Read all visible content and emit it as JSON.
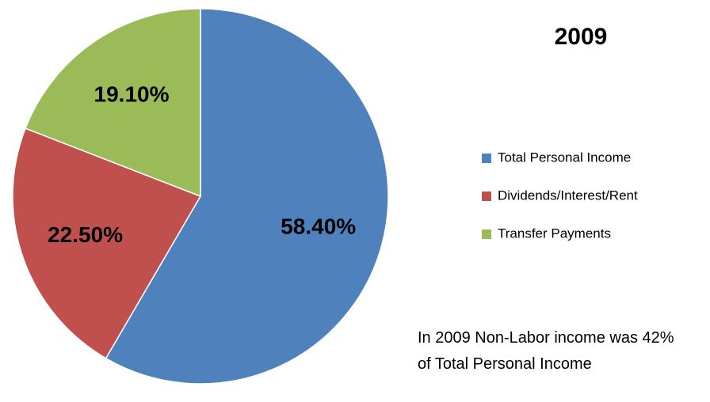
{
  "chart_data": {
    "type": "pie",
    "title": "2009",
    "categories": [
      "Total Personal Income",
      "Dividends/Interest/Rent",
      "Transfer Payments"
    ],
    "values": [
      58.4,
      22.5,
      19.1
    ],
    "value_labels": [
      "58.40%",
      "22.50%",
      "19.10%"
    ],
    "colors": [
      "#4f81bd",
      "#c0504d",
      "#9bbb59"
    ],
    "legend": "right",
    "annotation": "In 2009 Non-Labor income was 42% of Total Personal Income"
  }
}
